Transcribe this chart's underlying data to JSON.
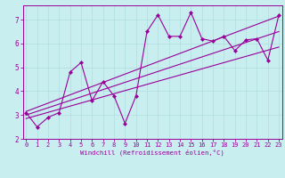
{
  "title": "",
  "xlabel": "Windchill (Refroidissement éolien,°C)",
  "bg_color": "#c8eef0",
  "line_color": "#990099",
  "grid_color": "#b0dde0",
  "x_ticks": [
    0,
    1,
    2,
    3,
    4,
    5,
    6,
    7,
    8,
    9,
    10,
    11,
    12,
    13,
    14,
    15,
    16,
    17,
    18,
    19,
    20,
    21,
    22,
    23
  ],
  "y_ticks": [
    2,
    3,
    4,
    5,
    6,
    7
  ],
  "xlim": [
    -0.3,
    23.3
  ],
  "ylim": [
    2.0,
    7.6
  ],
  "series1_x": [
    0,
    1,
    2,
    3,
    4,
    5,
    6,
    7,
    8,
    9,
    10,
    11,
    12,
    13,
    14,
    15,
    16,
    17,
    18,
    19,
    20,
    21,
    22,
    23
  ],
  "series1_y": [
    3.1,
    2.5,
    2.9,
    3.1,
    4.8,
    5.2,
    3.6,
    4.4,
    3.8,
    2.65,
    3.8,
    6.5,
    7.2,
    6.3,
    6.3,
    7.3,
    6.2,
    6.1,
    6.3,
    5.7,
    6.15,
    6.2,
    5.3,
    7.2
  ],
  "series2_x": [
    0,
    23
  ],
  "series2_y": [
    2.85,
    5.85
  ],
  "series3_x": [
    0,
    23
  ],
  "series3_y": [
    3.15,
    7.15
  ],
  "series4_x": [
    0,
    23
  ],
  "series4_y": [
    3.0,
    6.5
  ],
  "marker_size": 2.2,
  "line_width": 0.8,
  "tick_fontsize": 5.0,
  "xlabel_fontsize": 5.2,
  "spine_lw": 0.7
}
